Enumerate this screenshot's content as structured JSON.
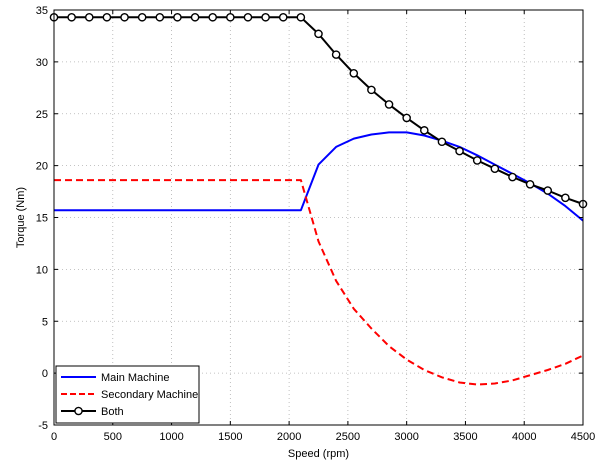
{
  "chart_data": {
    "type": "line",
    "xlabel": "Speed (rpm)",
    "ylabel": "Torque (Nm)",
    "xlim": [
      0,
      4500
    ],
    "ylim": [
      -5,
      35
    ],
    "xticks": [
      0,
      500,
      1000,
      1500,
      2000,
      2500,
      3000,
      3500,
      4000,
      4500
    ],
    "yticks": [
      -5,
      0,
      5,
      10,
      15,
      20,
      25,
      30,
      35
    ],
    "grid": true,
    "legend_position": "bottom-left",
    "series": [
      {
        "name": "Main Machine",
        "color": "#0000ff",
        "style": "solid",
        "marker": "none",
        "x": [
          0,
          2100,
          2250,
          2400,
          2550,
          2700,
          2850,
          3000,
          3150,
          3300,
          3450,
          3600,
          3750,
          3900,
          4050,
          4200,
          4350,
          4500
        ],
        "y": [
          15.7,
          15.7,
          20.1,
          21.8,
          22.6,
          23.0,
          23.2,
          23.2,
          22.9,
          22.4,
          21.8,
          21.0,
          20.1,
          19.2,
          18.3,
          17.3,
          16.1,
          14.7
        ]
      },
      {
        "name": "Secondary Machine",
        "color": "#ff0000",
        "style": "dashed",
        "marker": "none",
        "x": [
          0,
          2100,
          2250,
          2400,
          2550,
          2700,
          2850,
          3000,
          3150,
          3300,
          3450,
          3600,
          3750,
          3900,
          4050,
          4200,
          4350,
          4500
        ],
        "y": [
          18.6,
          18.6,
          12.7,
          8.9,
          6.2,
          4.3,
          2.6,
          1.3,
          0.3,
          -0.4,
          -0.9,
          -1.1,
          -1.0,
          -0.7,
          -0.2,
          0.3,
          0.9,
          1.7
        ]
      },
      {
        "name": "Both",
        "color": "#000000",
        "style": "solid",
        "marker": "circle",
        "x": [
          0,
          150,
          300,
          450,
          600,
          750,
          900,
          1050,
          1200,
          1350,
          1500,
          1650,
          1800,
          1950,
          2100,
          2250,
          2400,
          2550,
          2700,
          2850,
          3000,
          3150,
          3300,
          3450,
          3600,
          3750,
          3900,
          4050,
          4200,
          4350,
          4500
        ],
        "y": [
          34.3,
          34.3,
          34.3,
          34.3,
          34.3,
          34.3,
          34.3,
          34.3,
          34.3,
          34.3,
          34.3,
          34.3,
          34.3,
          34.3,
          34.3,
          32.7,
          30.7,
          28.9,
          27.3,
          25.9,
          24.6,
          23.4,
          22.3,
          21.4,
          20.5,
          19.7,
          18.9,
          18.2,
          17.6,
          16.9,
          16.3
        ]
      }
    ]
  }
}
